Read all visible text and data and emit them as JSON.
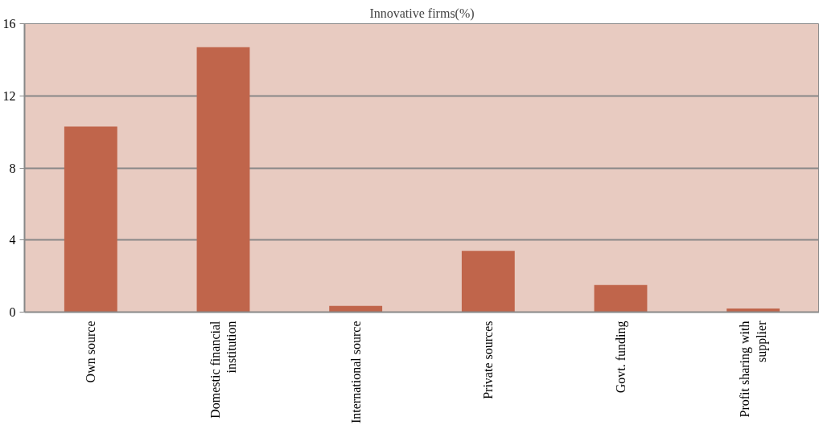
{
  "chart_data": {
    "type": "bar",
    "title": "Innovative firms(%)",
    "categories": [
      "Own source",
      "Domestic financial institution",
      "International source",
      "Private sources",
      "Govt. funding",
      "Profit sharing with supplier"
    ],
    "values": [
      10.3,
      14.7,
      0.35,
      3.4,
      1.5,
      0.2
    ],
    "color": "#c0654b",
    "ylim": [
      0,
      16
    ],
    "yticks": [
      0,
      4,
      8,
      12,
      16
    ],
    "grid": "y"
  }
}
